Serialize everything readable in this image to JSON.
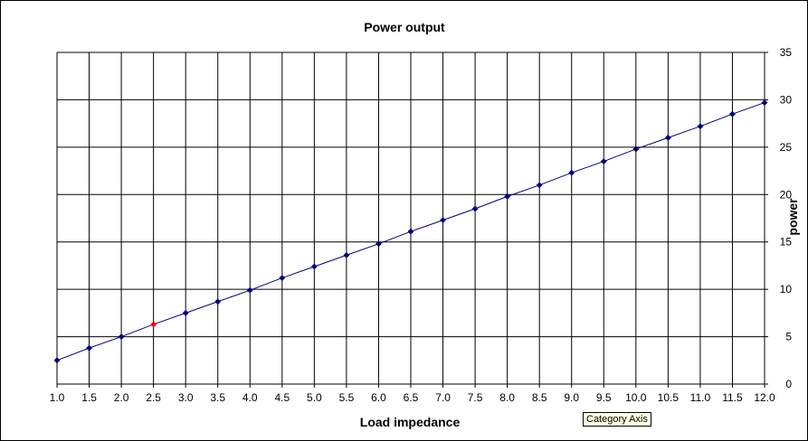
{
  "chart_data": {
    "type": "line",
    "title": "Power output",
    "xlabel": "Load impedance",
    "ylabel": "power",
    "x": [
      "1.0",
      "1.5",
      "2.0",
      "2.5",
      "3.0",
      "3.5",
      "4.0",
      "4.5",
      "5.0",
      "5.5",
      "6.0",
      "6.5",
      "7.0",
      "7.5",
      "8.0",
      "8.5",
      "9.0",
      "9.5",
      "10.0",
      "10.5",
      "11.0",
      "11.5",
      "12.0"
    ],
    "series": [
      {
        "values": [
          2.5,
          3.8,
          5.0,
          6.3,
          7.5,
          8.7,
          9.9,
          11.2,
          12.4,
          13.6,
          14.8,
          16.1,
          17.3,
          18.5,
          19.8,
          21.0,
          22.3,
          23.5,
          24.8,
          26.0,
          27.2,
          28.5,
          29.7
        ],
        "color": "#000080",
        "highlight_index": 3,
        "highlight_color": "#ff0000"
      }
    ],
    "ylim": [
      0,
      35
    ],
    "yticks": [
      0,
      5,
      10,
      15,
      20,
      25,
      30,
      35
    ],
    "y_axis_side": "right",
    "grid": true,
    "gridlines": "both"
  },
  "tooltip": {
    "text": "Category Axis"
  }
}
